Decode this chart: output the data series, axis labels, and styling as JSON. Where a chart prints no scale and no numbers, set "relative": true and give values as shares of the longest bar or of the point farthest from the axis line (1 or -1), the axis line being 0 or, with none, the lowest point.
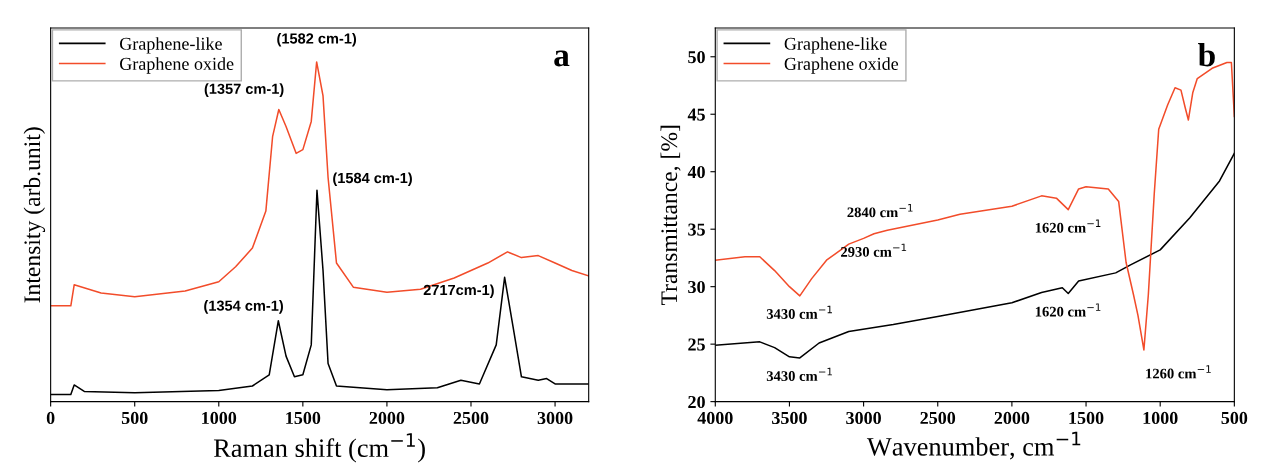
{
  "chart_data": [
    {
      "type": "line",
      "xlabel": "Raman shift (cm$^{−1}$)",
      "ylabel": "Intensity (arb.unit)",
      "relative": true,
      "xlim": [
        0,
        3200
      ],
      "xticks": [
        0,
        500,
        1000,
        1500,
        2000,
        2500,
        3000
      ],
      "tick_labels": "x",
      "legend": "top left",
      "grid": false,
      "series": [
        {
          "name": "Graphene-like",
          "color": "#000000",
          "x": [
            0,
            120,
            140,
            200,
            500,
            1000,
            1200,
            1300,
            1354,
            1400,
            1450,
            1500,
            1550,
            1584,
            1620,
            1650,
            1700,
            2000,
            2300,
            2440,
            2550,
            2650,
            2700,
            2750,
            2800,
            2900,
            2950,
            3000,
            3200
          ],
          "values": [
            0.021,
            0.021,
            0.049,
            0.03,
            0.026,
            0.033,
            0.046,
            0.079,
            0.238,
            0.134,
            0.073,
            0.079,
            0.167,
            0.622,
            0.386,
            0.112,
            0.046,
            0.035,
            0.041,
            0.063,
            0.052,
            0.167,
            0.366,
            0.221,
            0.073,
            0.063,
            0.068,
            0.052,
            0.052
          ]
        },
        {
          "name": "Graphene oxide",
          "color": "#f24c2a",
          "x": [
            0,
            120,
            140,
            300,
            500,
            800,
            1000,
            1100,
            1200,
            1280,
            1320,
            1357,
            1400,
            1460,
            1500,
            1550,
            1582,
            1620,
            1650,
            1700,
            1800,
            2000,
            2200,
            2400,
            2600,
            2717,
            2800,
            2900,
            3000,
            3100,
            3200
          ],
          "values": [
            0.282,
            0.282,
            0.344,
            0.32,
            0.309,
            0.326,
            0.353,
            0.397,
            0.452,
            0.561,
            0.78,
            0.86,
            0.81,
            0.731,
            0.742,
            0.825,
            1.0,
            0.9,
            0.66,
            0.408,
            0.337,
            0.322,
            0.331,
            0.364,
            0.408,
            0.441,
            0.424,
            0.43,
            0.408,
            0.386,
            0.37
          ]
        }
      ],
      "annotations": [
        {
          "text": "(1582 cm-1)",
          "x": 1582,
          "y": 1.0
        },
        {
          "text": "(1357 cm-1)",
          "x": 1357,
          "y": 0.86
        },
        {
          "text": "(1584 cm-1)",
          "x": 1584,
          "y": 0.622
        },
        {
          "text": "(1354 cm-1)",
          "x": 1354,
          "y": 0.238
        },
        {
          "text": "2717cm-1)",
          "x": 2717,
          "y": 0.366
        },
        "a"
      ]
    },
    {
      "type": "line",
      "xlabel": "Wavenumber, cm$^{−1}$",
      "ylabel": "Transmittance, [%]",
      "xlim": [
        4000,
        500
      ],
      "xticks": [
        4000,
        3500,
        3000,
        2500,
        2000,
        1500,
        1000,
        500
      ],
      "ylim": [
        20,
        52.5
      ],
      "yticks": [
        20,
        25,
        30,
        35,
        40,
        45,
        50
      ],
      "legend": "top left",
      "grid": false,
      "series": [
        {
          "name": "Graphene-like",
          "color": "#000000",
          "x": [
            4000,
            3700,
            3600,
            3500,
            3430,
            3300,
            3100,
            2800,
            2500,
            2000,
            1800,
            1660,
            1620,
            1550,
            1300,
            1200,
            1000,
            800,
            600,
            500
          ],
          "values": [
            24.9,
            25.2,
            24.7,
            23.9,
            23.8,
            25.1,
            26.1,
            26.7,
            27.4,
            28.6,
            29.5,
            29.9,
            29.4,
            30.5,
            31.2,
            31.9,
            33.2,
            36.0,
            39.2,
            41.6
          ]
        },
        {
          "name": "Graphene oxide",
          "color": "#f24c2a",
          "x": [
            4000,
            3800,
            3700,
            3600,
            3500,
            3430,
            3350,
            3250,
            3100,
            3000,
            2930,
            2840,
            2500,
            2350,
            2000,
            1800,
            1700,
            1620,
            1550,
            1500,
            1350,
            1280,
            1230,
            1180,
            1150,
            1110,
            1080,
            1040,
            1010,
            950,
            900,
            860,
            830,
            810,
            780,
            750,
            650,
            550,
            520,
            500
          ],
          "values": [
            32.3,
            32.6,
            32.6,
            31.4,
            30.0,
            29.2,
            30.7,
            32.3,
            33.7,
            34.2,
            34.6,
            34.9,
            35.8,
            36.3,
            37.0,
            37.9,
            37.7,
            36.7,
            38.5,
            38.7,
            38.5,
            37.4,
            32.1,
            29.3,
            27.5,
            24.5,
            29.3,
            38.1,
            43.7,
            45.8,
            47.3,
            47.1,
            45.5,
            44.5,
            46.9,
            48.1,
            49.0,
            49.5,
            49.5,
            44.8
          ]
        }
      ],
      "annotations": [
        {
          "text": "2840 cm$^{−1}$",
          "x": 2840,
          "y": 34.9
        },
        {
          "text": "2930 cm$^{−1}$",
          "x": 2930,
          "y": 34.6
        },
        {
          "text": "3430 cm$^{−1}$",
          "x": 3430,
          "y": 29.2
        },
        {
          "text": "3430 cm$^{−1}$",
          "x": 3430,
          "y": 23.8
        },
        {
          "text": "1620 cm$^{−1}$",
          "x": 1620,
          "y": 36.7
        },
        {
          "text": "1620 cm$^{−1}$",
          "x": 1620,
          "y": 29.4
        },
        {
          "text": "1260 cm$^{−1}$",
          "x": 1110,
          "y": 24.5
        },
        "b"
      ]
    }
  ]
}
